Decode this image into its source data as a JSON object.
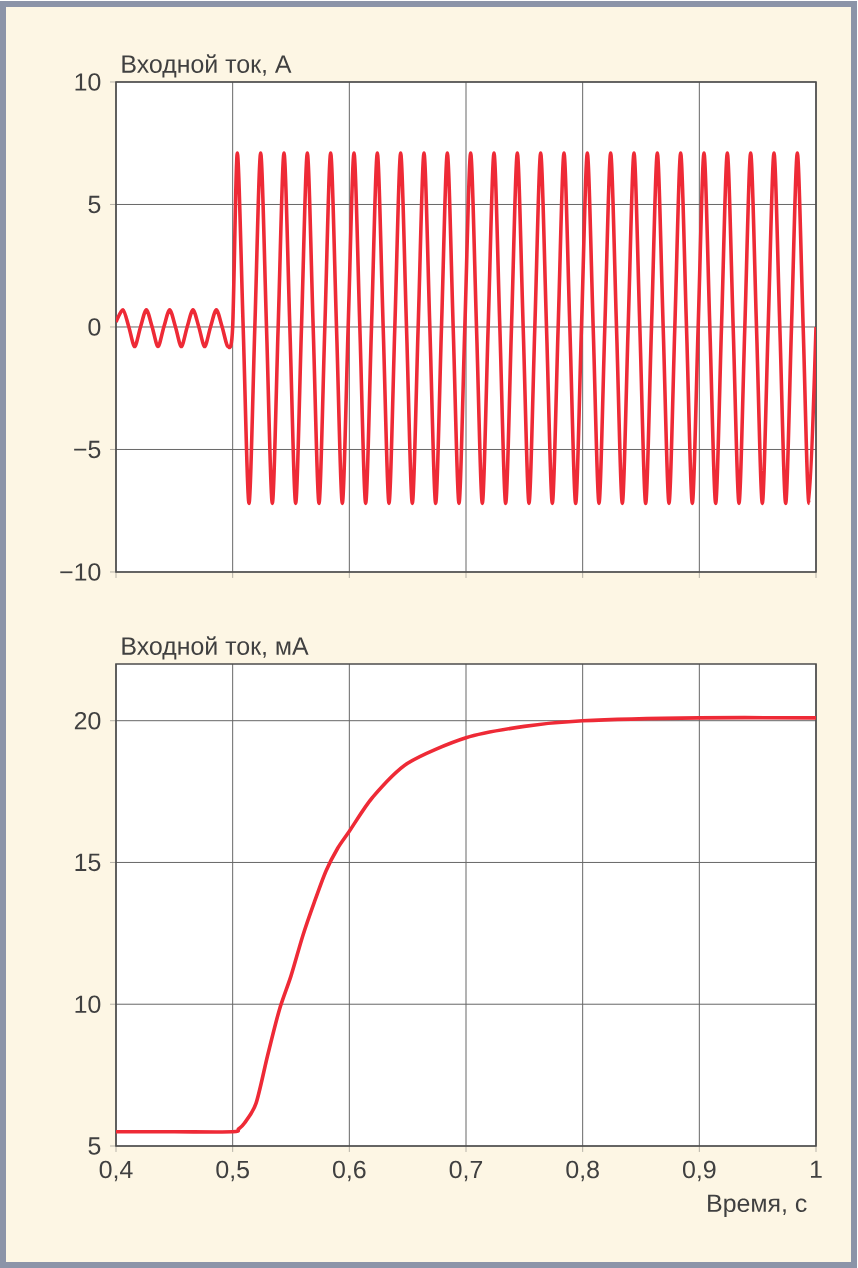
{
  "chart_data": [
    {
      "type": "line",
      "ylabel": "Входной ток, А",
      "xlim": [
        0.4,
        1.0
      ],
      "ylim": [
        -10,
        10
      ],
      "xticks": [
        0.4,
        0.5,
        0.6,
        0.7,
        0.8,
        0.9,
        1.0
      ],
      "yticks": [
        {
          "value": -10,
          "label": "−10"
        },
        {
          "value": -5,
          "label": "−5"
        },
        0,
        5,
        10
      ],
      "grid": true,
      "tick_labels": "y",
      "series": [
        {
          "color": "#ee2a36",
          "x": [
            0.4,
            0.406,
            0.411,
            0.416,
            0.421,
            0.426,
            0.431,
            0.436,
            0.441,
            0.446,
            0.451,
            0.456,
            0.461,
            0.466,
            0.471,
            0.476,
            0.481,
            0.486,
            0.491,
            0.496,
            0.5,
            0.504,
            0.509,
            0.514,
            0.519,
            0.524,
            0.529,
            0.534,
            0.539,
            0.544,
            0.549,
            0.554,
            0.559,
            0.564,
            0.569,
            0.574,
            0.579,
            0.584,
            0.589,
            0.594,
            0.599,
            0.604,
            0.609,
            0.614,
            0.619,
            0.624,
            0.629,
            0.634,
            0.639,
            0.644,
            0.649,
            0.654,
            0.659,
            0.664,
            0.669,
            0.674,
            0.679,
            0.684,
            0.689,
            0.694,
            0.699,
            0.704,
            0.709,
            0.714,
            0.719,
            0.724,
            0.729,
            0.734,
            0.739,
            0.744,
            0.749,
            0.754,
            0.759,
            0.764,
            0.769,
            0.774,
            0.779,
            0.784,
            0.789,
            0.794,
            0.799,
            0.804,
            0.809,
            0.814,
            0.819,
            0.824,
            0.829,
            0.834,
            0.839,
            0.844,
            0.849,
            0.854,
            0.859,
            0.864,
            0.869,
            0.874,
            0.879,
            0.884,
            0.889,
            0.894,
            0.899,
            0.904,
            0.909,
            0.914,
            0.919,
            0.924,
            0.929,
            0.934,
            0.939,
            0.944,
            0.949,
            0.954,
            0.959,
            0.964,
            0.969,
            0.974,
            0.979,
            0.984,
            0.989,
            0.994,
            1.0
          ],
          "values": [
            0.2,
            0.7,
            0,
            -0.8,
            0,
            0.7,
            0,
            -0.8,
            0,
            0.7,
            0,
            -0.8,
            0,
            0.7,
            0,
            -0.8,
            0,
            0.7,
            0,
            -0.8,
            0,
            7.1,
            0,
            -7.2,
            0,
            7.1,
            0,
            -7.2,
            0,
            7.1,
            0,
            -7.2,
            0,
            7.1,
            0,
            -7.2,
            0,
            7.1,
            0,
            -7.2,
            0,
            7.1,
            0,
            -7.2,
            0,
            7.1,
            0,
            -7.2,
            0,
            7.1,
            0,
            -7.2,
            0,
            7.1,
            0,
            -7.2,
            0,
            7.1,
            0,
            -7.2,
            0,
            7.1,
            0,
            -7.2,
            0,
            7.1,
            0,
            -7.2,
            0,
            7.1,
            0,
            -7.2,
            0,
            7.1,
            0,
            -7.2,
            0,
            7.1,
            0,
            -7.2,
            0,
            7.1,
            0,
            -7.2,
            0,
            7.1,
            0,
            -7.2,
            0,
            7.1,
            0,
            -7.2,
            0,
            7.1,
            0,
            -7.2,
            0,
            7.1,
            0,
            -7.2,
            0,
            7.1,
            0,
            -7.2,
            0,
            7.1,
            0,
            -7.2,
            0,
            7.1,
            0,
            -7.2,
            0,
            7.1,
            0,
            -7.2,
            0,
            7.1,
            0,
            -7.2,
            0
          ]
        }
      ]
    },
    {
      "type": "line",
      "ylabel": "Входной ток, мА",
      "xlabel": "Время, с",
      "xlim": [
        0.4,
        1.0
      ],
      "ylim": [
        5,
        22
      ],
      "xticks": [
        {
          "value": 0.4,
          "label": "0,4"
        },
        {
          "value": 0.5,
          "label": "0,5"
        },
        {
          "value": 0.6,
          "label": "0,6"
        },
        {
          "value": 0.7,
          "label": "0,7"
        },
        {
          "value": 0.8,
          "label": "0,8"
        },
        {
          "value": 0.9,
          "label": "0,9"
        },
        1
      ],
      "yticks": [
        5,
        10,
        15,
        20
      ],
      "grid": true,
      "series": [
        {
          "color": "#ee2a36",
          "x": [
            0.4,
            0.45,
            0.5,
            0.505,
            0.51,
            0.52,
            0.53,
            0.54,
            0.55,
            0.56,
            0.57,
            0.58,
            0.59,
            0.6,
            0.62,
            0.65,
            0.7,
            0.75,
            0.8,
            0.9,
            1.0
          ],
          "values": [
            5.5,
            5.5,
            5.5,
            5.6,
            5.8,
            6.5,
            8.2,
            9.8,
            11.0,
            12.4,
            13.6,
            14.7,
            15.5,
            16.1,
            17.3,
            18.5,
            19.4,
            19.8,
            20.0,
            20.1,
            20.1
          ]
        }
      ]
    }
  ]
}
